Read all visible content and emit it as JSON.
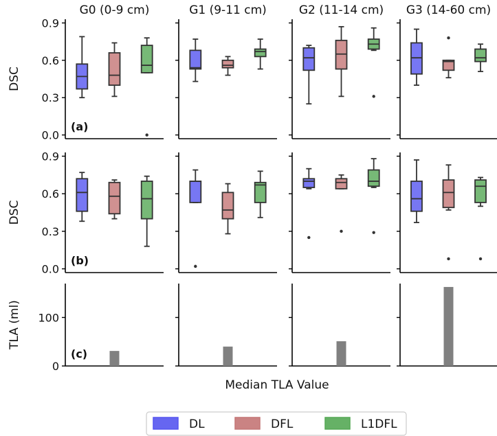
{
  "chart_data": {
    "type": "box",
    "groups": [
      "G0 (0-9 cm)",
      "G1 (9-11 cm)",
      "G2 (11-14 cm)",
      "G3 (14-60 cm)"
    ],
    "legend": {
      "position": "bottom-center",
      "entries": [
        {
          "name": "DL",
          "color": "#5555f0"
        },
        {
          "name": "DFL",
          "color": "#c47676"
        },
        {
          "name": "L1DFL",
          "color": "#55a855"
        }
      ]
    },
    "rows": [
      {
        "panel_label": "(a)",
        "ylabel": "DSC",
        "ylim": [
          -0.03,
          0.93
        ],
        "yticks": [
          "0.0",
          "0.3",
          "0.6",
          "0.9"
        ],
        "ytick_values": [
          0.0,
          0.3,
          0.6,
          0.9
        ],
        "boxes": [
          [
            {
              "series": "DL",
              "q1": 0.37,
              "median": 0.47,
              "q3": 0.57,
              "whisker_low": 0.3,
              "whisker_high": 0.79,
              "outliers": []
            },
            {
              "series": "DFL",
              "q1": 0.4,
              "median": 0.48,
              "q3": 0.66,
              "whisker_low": 0.31,
              "whisker_high": 0.74,
              "outliers": []
            },
            {
              "series": "L1DFL",
              "q1": 0.5,
              "median": 0.56,
              "q3": 0.72,
              "whisker_low": 0.5,
              "whisker_high": 0.78,
              "outliers": [
                0.0
              ]
            }
          ],
          [
            {
              "series": "DL",
              "q1": 0.53,
              "median": 0.54,
              "q3": 0.68,
              "whisker_low": 0.43,
              "whisker_high": 0.77,
              "outliers": []
            },
            {
              "series": "DFL",
              "q1": 0.54,
              "median": 0.56,
              "q3": 0.6,
              "whisker_low": 0.48,
              "whisker_high": 0.63,
              "outliers": []
            },
            {
              "series": "L1DFL",
              "q1": 0.63,
              "median": 0.67,
              "q3": 0.69,
              "whisker_low": 0.53,
              "whisker_high": 0.77,
              "outliers": []
            }
          ],
          [
            {
              "series": "DL",
              "q1": 0.52,
              "median": 0.62,
              "q3": 0.7,
              "whisker_low": 0.25,
              "whisker_high": 0.72,
              "outliers": []
            },
            {
              "series": "DFL",
              "q1": 0.53,
              "median": 0.65,
              "q3": 0.76,
              "whisker_low": 0.31,
              "whisker_high": 0.87,
              "outliers": []
            },
            {
              "series": "L1DFL",
              "q1": 0.69,
              "median": 0.73,
              "q3": 0.77,
              "whisker_low": 0.68,
              "whisker_high": 0.86,
              "outliers": [
                0.31
              ]
            }
          ],
          [
            {
              "series": "DL",
              "q1": 0.49,
              "median": 0.62,
              "q3": 0.74,
              "whisker_low": 0.4,
              "whisker_high": 0.85,
              "outliers": []
            },
            {
              "series": "DFL",
              "q1": 0.52,
              "median": 0.59,
              "q3": 0.6,
              "whisker_low": 0.46,
              "whisker_high": 0.6,
              "outliers": [
                0.78
              ]
            },
            {
              "series": "L1DFL",
              "q1": 0.59,
              "median": 0.62,
              "q3": 0.69,
              "whisker_low": 0.51,
              "whisker_high": 0.73,
              "outliers": []
            }
          ]
        ]
      },
      {
        "panel_label": "(b)",
        "ylabel": "DSC",
        "ylim": [
          -0.03,
          0.93
        ],
        "yticks": [
          "0.0",
          "0.3",
          "0.6",
          "0.9"
        ],
        "ytick_values": [
          0.0,
          0.3,
          0.6,
          0.9
        ],
        "boxes": [
          [
            {
              "series": "DL",
              "q1": 0.46,
              "median": 0.61,
              "q3": 0.72,
              "whisker_low": 0.38,
              "whisker_high": 0.77,
              "outliers": []
            },
            {
              "series": "DFL",
              "q1": 0.44,
              "median": 0.58,
              "q3": 0.69,
              "whisker_low": 0.4,
              "whisker_high": 0.71,
              "outliers": []
            },
            {
              "series": "L1DFL",
              "q1": 0.4,
              "median": 0.56,
              "q3": 0.7,
              "whisker_low": 0.18,
              "whisker_high": 0.74,
              "outliers": []
            }
          ],
          [
            {
              "series": "DL",
              "q1": 0.53,
              "median": 0.7,
              "q3": 0.7,
              "whisker_low": 0.53,
              "whisker_high": 0.79,
              "outliers": [
                0.02
              ]
            },
            {
              "series": "DFL",
              "q1": 0.4,
              "median": 0.47,
              "q3": 0.61,
              "whisker_low": 0.28,
              "whisker_high": 0.68,
              "outliers": []
            },
            {
              "series": "L1DFL",
              "q1": 0.53,
              "median": 0.67,
              "q3": 0.69,
              "whisker_low": 0.41,
              "whisker_high": 0.78,
              "outliers": []
            }
          ],
          [
            {
              "series": "DL",
              "q1": 0.65,
              "median": 0.7,
              "q3": 0.72,
              "whisker_low": 0.64,
              "whisker_high": 0.8,
              "outliers": [
                0.25
              ]
            },
            {
              "series": "DFL",
              "q1": 0.64,
              "median": 0.69,
              "q3": 0.72,
              "whisker_low": 0.64,
              "whisker_high": 0.75,
              "outliers": [
                0.3
              ]
            },
            {
              "series": "L1DFL",
              "q1": 0.66,
              "median": 0.7,
              "q3": 0.79,
              "whisker_low": 0.65,
              "whisker_high": 0.88,
              "outliers": [
                0.29
              ]
            }
          ],
          [
            {
              "series": "DL",
              "q1": 0.46,
              "median": 0.56,
              "q3": 0.7,
              "whisker_low": 0.37,
              "whisker_high": 0.87,
              "outliers": []
            },
            {
              "series": "DFL",
              "q1": 0.49,
              "median": 0.61,
              "q3": 0.71,
              "whisker_low": 0.47,
              "whisker_high": 0.83,
              "outliers": [
                0.08
              ]
            },
            {
              "series": "L1DFL",
              "q1": 0.53,
              "median": 0.66,
              "q3": 0.71,
              "whisker_low": 0.5,
              "whisker_high": 0.73,
              "outliers": [
                0.08
              ]
            }
          ]
        ]
      }
    ],
    "bar_row": {
      "panel_label": "(c)",
      "ylabel": "TLA (ml)",
      "xlabel": "Median TLA Value",
      "ylim": [
        0,
        170
      ],
      "yticks": [
        "0",
        "100"
      ],
      "ytick_values": [
        0,
        100
      ],
      "bar_color": "#808080",
      "values": [
        31,
        40,
        51,
        163
      ]
    }
  }
}
